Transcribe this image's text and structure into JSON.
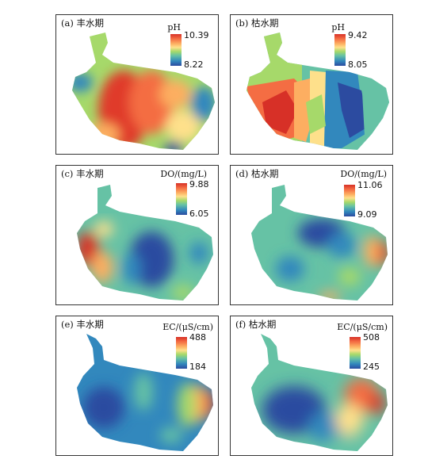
{
  "panels": [
    {
      "id": "a",
      "title": "(a) 丰水期",
      "unit": "pH",
      "max": "10.39",
      "min": "8.22",
      "variant": "map_a"
    },
    {
      "id": "b",
      "title": "(b) 枯水期",
      "unit": "pH",
      "max": "9.42",
      "min": "8.05",
      "variant": "map_b"
    },
    {
      "id": "c",
      "title": "(c) 丰水期",
      "unit": "DO/(mg/L)",
      "max": "9.88",
      "min": "6.05",
      "variant": "map_c"
    },
    {
      "id": "d",
      "title": "(d) 枯水期",
      "unit": "DO/(mg/L)",
      "max": "11.06",
      "min": "9.09",
      "variant": "map_d"
    },
    {
      "id": "e",
      "title": "(e) 丰水期",
      "unit": "EC/(μS/cm)",
      "max": "488",
      "min": "184",
      "variant": "map_e"
    },
    {
      "id": "f",
      "title": "(f) 枯水期",
      "unit": "EC/(μS/cm)",
      "max": "508",
      "min": "245",
      "variant": "map_f"
    }
  ],
  "colorscale": [
    "#d73027",
    "#f46d43",
    "#fdae61",
    "#fee08b",
    "#a6d96a",
    "#66c2a5",
    "#3288bd",
    "#2c4ba0"
  ]
}
